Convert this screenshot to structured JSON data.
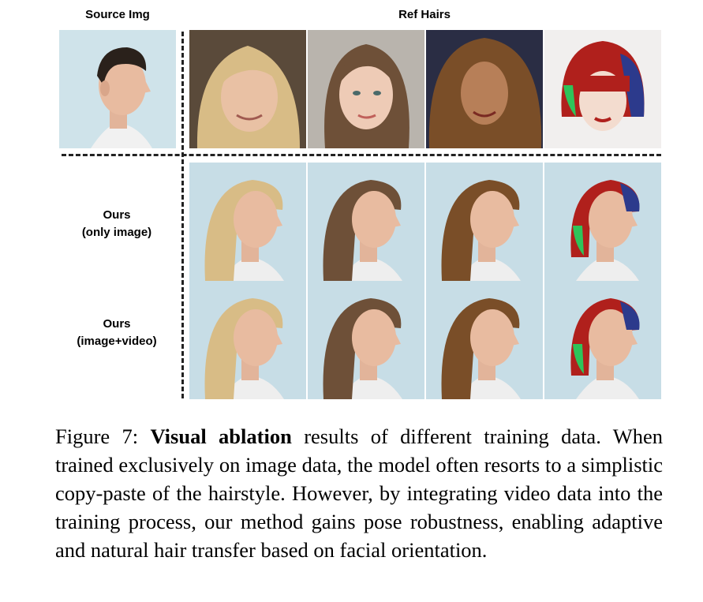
{
  "headers": {
    "source": "Source Img",
    "ref": "Ref Hairs"
  },
  "rows": {
    "only_image": {
      "line1": "Ours",
      "line2": "(only image)"
    },
    "image_video": {
      "line1": "Ours",
      "line2": "(image+video)"
    }
  },
  "caption": {
    "prefix": "Figure 7: ",
    "bold": "Visual ablation",
    "rest": " results of different training data. When trained exclusively on image data, the model often resorts to a simplistic copy-paste of the hairstyle. However, by integrating video data into the training process, our method gains pose robustness, enabling adaptive and natural hair transfer based on facial orientation."
  },
  "hair_colors": {
    "source": "#2a211b",
    "ref1": "#d8bc86",
    "ref2": "#6e5038",
    "ref3": "#7a4e28",
    "ref4": "#b0201c"
  }
}
